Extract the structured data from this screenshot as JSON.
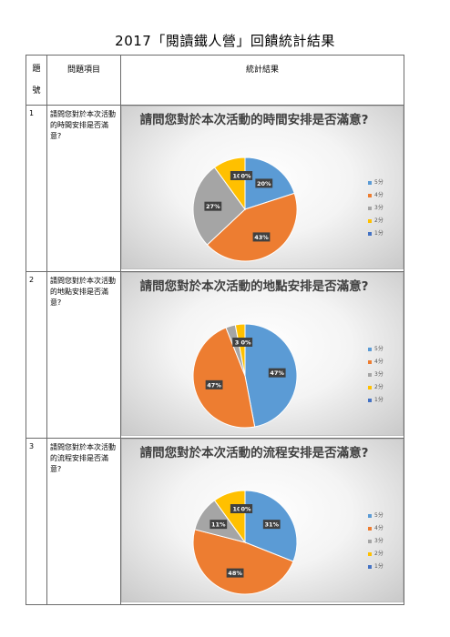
{
  "document": {
    "title": "2017「閱讀鐵人營」回饋統計結果",
    "headers": {
      "num_line1": "題",
      "num_line2": "號",
      "question": "問題項目",
      "result": "統計結果"
    },
    "rows": [
      {
        "num": "1",
        "question": "請問您對於本次活動的時間安排是否滿意?"
      },
      {
        "num": "2",
        "question": "請問您對於本次活動的地點安排是否滿意?"
      },
      {
        "num": "3",
        "question": "請問您對於本次活動的流程安排是否滿意?"
      }
    ]
  },
  "colors": {
    "5分": "#5b9bd5",
    "4分": "#ed7d31",
    "3分": "#a5a5a5",
    "2分": "#ffc000",
    "1分": "#4472c4"
  },
  "chart_data": [
    {
      "type": "pie",
      "title": "請問您對於本次活動的時間安排是否滿意?",
      "categories": [
        "5分",
        "4分",
        "3分",
        "2分",
        "1分"
      ],
      "values": [
        20,
        43,
        27,
        10,
        0
      ],
      "labels": [
        "20%",
        "43%",
        "27%",
        "10",
        "0%"
      ],
      "legend_position": "right"
    },
    {
      "type": "pie",
      "title": "請問您對於本次活動的地點安排是否滿意?",
      "categories": [
        "5分",
        "4分",
        "3分",
        "2分",
        "1分"
      ],
      "values": [
        47,
        47,
        3,
        3,
        0
      ],
      "labels": [
        "47%",
        "47%",
        "3",
        "",
        "0%"
      ],
      "legend_position": "right"
    },
    {
      "type": "pie",
      "title": "請問您對於本次活動的流程安排是否滿意?",
      "categories": [
        "5分",
        "4分",
        "3分",
        "2分",
        "1分"
      ],
      "values": [
        31,
        48,
        11,
        10,
        0
      ],
      "labels": [
        "31%",
        "48%",
        "11%",
        "10",
        "0%"
      ],
      "legend_position": "right"
    }
  ]
}
